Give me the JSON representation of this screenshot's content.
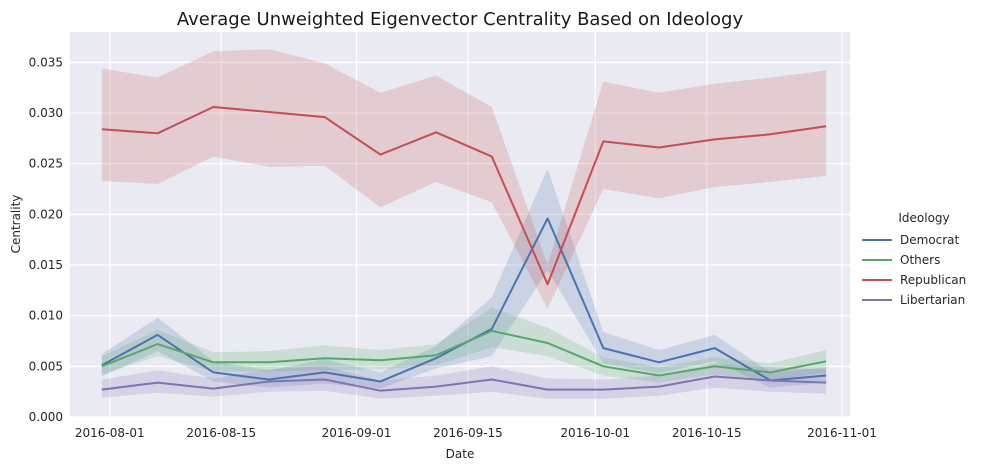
{
  "chart_data": {
    "type": "line",
    "title": "Average Unweighted Eigenvector Centrality Based on Ideology",
    "xlabel": "Date",
    "ylabel": "Centrality",
    "x": [
      "2016-07-31",
      "2016-08-07",
      "2016-08-14",
      "2016-08-21",
      "2016-08-28",
      "2016-09-04",
      "2016-09-11",
      "2016-09-18",
      "2016-09-25",
      "2016-10-02",
      "2016-10-09",
      "2016-10-16",
      "2016-10-23",
      "2016-10-30"
    ],
    "xlim": [
      "2016-07-27",
      "2016-11-02"
    ],
    "ylim": [
      0,
      0.038
    ],
    "xticks": [
      "2016-08-01",
      "2016-08-15",
      "2016-09-01",
      "2016-09-15",
      "2016-10-01",
      "2016-10-15",
      "2016-11-01"
    ],
    "yticks": [
      "0.000",
      "0.005",
      "0.010",
      "0.015",
      "0.020",
      "0.025",
      "0.030",
      "0.035"
    ],
    "grid": true,
    "legend": {
      "title": "Ideology",
      "placement": "right"
    },
    "series": [
      {
        "name": "Democrat",
        "color": "#4c72b0",
        "values": [
          0.0051,
          0.0081,
          0.0044,
          0.0037,
          0.0044,
          0.0035,
          0.0058,
          0.0087,
          0.0196,
          0.0068,
          0.0054,
          0.0068,
          0.0036,
          0.0041
        ],
        "ci_low": [
          0.004,
          0.0065,
          0.0035,
          0.0029,
          0.0033,
          0.0028,
          0.0048,
          0.006,
          0.0145,
          0.0053,
          0.0043,
          0.0055,
          0.0029,
          0.0034
        ],
        "ci_high": [
          0.0062,
          0.0098,
          0.0055,
          0.0046,
          0.0057,
          0.0044,
          0.007,
          0.0118,
          0.0245,
          0.0084,
          0.0066,
          0.0081,
          0.0044,
          0.0049
        ]
      },
      {
        "name": "Others",
        "color": "#55a868",
        "values": [
          0.005,
          0.0072,
          0.0054,
          0.0054,
          0.0058,
          0.0056,
          0.0061,
          0.0085,
          0.0073,
          0.005,
          0.0041,
          0.005,
          0.0044,
          0.0055
        ],
        "ci_low": [
          0.0042,
          0.006,
          0.0045,
          0.0045,
          0.0046,
          0.0047,
          0.0051,
          0.0069,
          0.006,
          0.0041,
          0.0034,
          0.0042,
          0.0036,
          0.0044
        ],
        "ci_high": [
          0.006,
          0.0086,
          0.0064,
          0.0065,
          0.0071,
          0.0066,
          0.0072,
          0.0108,
          0.0088,
          0.0059,
          0.0049,
          0.0059,
          0.0053,
          0.0066
        ]
      },
      {
        "name": "Republican",
        "color": "#c44e52",
        "values": [
          0.0284,
          0.028,
          0.0306,
          0.0301,
          0.0296,
          0.0259,
          0.0281,
          0.0257,
          0.0131,
          0.0272,
          0.0266,
          0.0274,
          0.0279,
          0.0287
        ],
        "ci_low": [
          0.0233,
          0.023,
          0.0257,
          0.0247,
          0.0248,
          0.0207,
          0.0232,
          0.0212,
          0.0107,
          0.0225,
          0.0216,
          0.0227,
          0.0232,
          0.0238
        ],
        "ci_high": [
          0.0344,
          0.0335,
          0.0361,
          0.0363,
          0.0349,
          0.032,
          0.0337,
          0.0306,
          0.015,
          0.0331,
          0.032,
          0.0329,
          0.0335,
          0.0342
        ]
      },
      {
        "name": "Libertarian",
        "color": "#8172b3",
        "values": [
          0.0027,
          0.0034,
          0.0028,
          0.0035,
          0.0037,
          0.0026,
          0.003,
          0.0037,
          0.0027,
          0.0027,
          0.003,
          0.004,
          0.0036,
          0.0034
        ],
        "ci_low": [
          0.0019,
          0.0024,
          0.002,
          0.0025,
          0.0026,
          0.0018,
          0.0021,
          0.0025,
          0.0018,
          0.0018,
          0.0021,
          0.0029,
          0.0025,
          0.0023
        ],
        "ci_high": [
          0.0037,
          0.0046,
          0.0038,
          0.0047,
          0.005,
          0.0036,
          0.0041,
          0.005,
          0.0038,
          0.0037,
          0.0041,
          0.0053,
          0.0049,
          0.0047
        ]
      }
    ]
  }
}
